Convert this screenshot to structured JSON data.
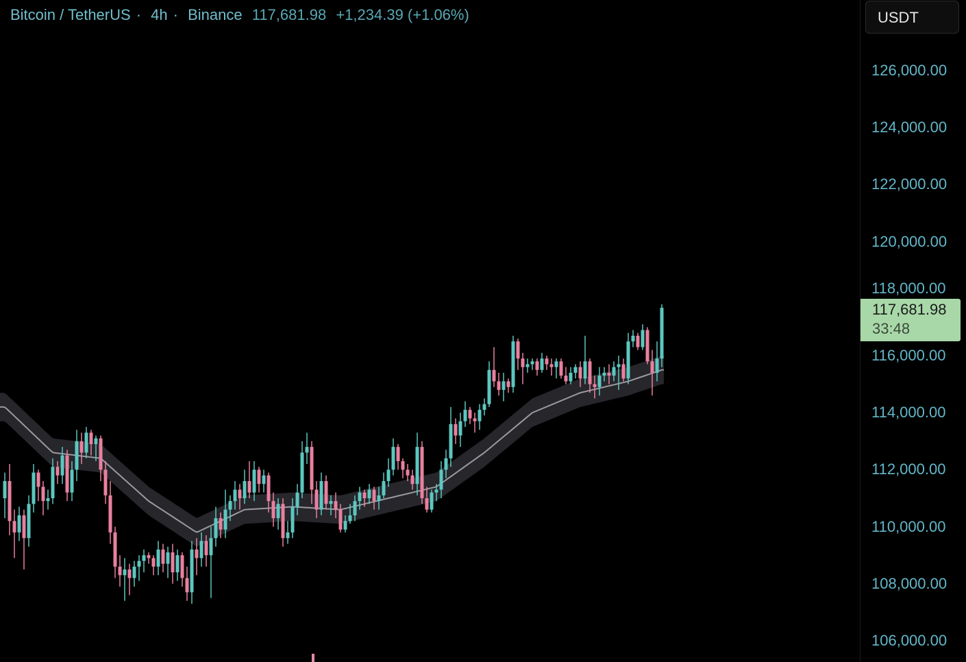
{
  "header": {
    "symbol": "Bitcoin / TetherUS",
    "interval": "4h",
    "exchange": "Binance",
    "separator": "·",
    "last_price": "117,681.98",
    "change": "+1,234.39 (+1.06%)"
  },
  "axis": {
    "currency_button": "USDT",
    "price_label": "117,681.98",
    "countdown": "33:48"
  },
  "colors": {
    "up": "#5cc7c0",
    "down": "#e8809f",
    "ma_line": "#9a9aa0",
    "ma_band": "#26262b",
    "price_tag": "#a8d8a8",
    "text": "#6fbfcc"
  },
  "chart_data": {
    "type": "candlestick",
    "title": "Bitcoin / TetherUS · 4h · Binance",
    "unit": "USDT",
    "price_scale": "thousands",
    "ylim": [
      105000,
      127500
    ],
    "yticks": [
      "106,000.00",
      "108,000.00",
      "110,000.00",
      "112,000.00",
      "114,000.00",
      "116,000.00",
      "118,000.00",
      "120,000.00",
      "122,000.00",
      "124,000.00",
      "126,000.00"
    ],
    "ytick_values": [
      106000,
      108000,
      110000,
      112000,
      114000,
      116000,
      118000,
      120000,
      122000,
      124000,
      126000
    ],
    "grid": false,
    "ohlc_k": [
      [
        111.0,
        111.9,
        110.3,
        111.6
      ],
      [
        111.6,
        112.2,
        109.7,
        110.2
      ],
      [
        110.2,
        110.6,
        108.9,
        109.8
      ],
      [
        109.8,
        110.7,
        109.5,
        110.4
      ],
      [
        110.4,
        110.6,
        108.5,
        109.6
      ],
      [
        109.6,
        111.1,
        109.3,
        110.8
      ],
      [
        110.8,
        112.2,
        110.5,
        111.9
      ],
      [
        111.9,
        112.0,
        110.9,
        111.4
      ],
      [
        111.4,
        111.6,
        110.4,
        110.9
      ],
      [
        110.9,
        111.3,
        110.6,
        111.0
      ],
      [
        111.0,
        112.4,
        110.8,
        112.1
      ],
      [
        112.1,
        112.3,
        111.5,
        111.8
      ],
      [
        111.8,
        112.8,
        111.5,
        112.5
      ],
      [
        112.5,
        112.7,
        110.9,
        111.2
      ],
      [
        111.2,
        112.3,
        110.9,
        112.0
      ],
      [
        112.0,
        113.4,
        111.6,
        113.0
      ],
      [
        113.0,
        113.3,
        112.2,
        112.6
      ],
      [
        112.6,
        113.5,
        112.4,
        113.3
      ],
      [
        113.3,
        113.4,
        112.5,
        112.9
      ],
      [
        112.9,
        113.2,
        112.3,
        113.1
      ],
      [
        113.1,
        113.2,
        111.6,
        112.0
      ],
      [
        112.0,
        112.3,
        110.8,
        111.1
      ],
      [
        111.1,
        111.6,
        109.4,
        109.8
      ],
      [
        109.8,
        110.0,
        108.2,
        108.6
      ],
      [
        108.6,
        109.0,
        107.9,
        108.3
      ],
      [
        108.3,
        108.9,
        107.4,
        108.5
      ],
      [
        108.5,
        108.7,
        107.6,
        108.2
      ],
      [
        108.2,
        108.8,
        107.9,
        108.6
      ],
      [
        108.6,
        109.0,
        108.1,
        108.8
      ],
      [
        108.8,
        109.2,
        108.4,
        109.0
      ],
      [
        109.0,
        109.1,
        108.7,
        108.9
      ],
      [
        108.9,
        109.0,
        108.3,
        108.6
      ],
      [
        108.6,
        109.5,
        108.3,
        109.2
      ],
      [
        109.2,
        109.4,
        108.4,
        108.7
      ],
      [
        108.7,
        109.3,
        108.2,
        109.1
      ],
      [
        109.1,
        109.4,
        108.0,
        108.4
      ],
      [
        108.4,
        109.2,
        108.1,
        109.0
      ],
      [
        109.0,
        109.1,
        107.9,
        108.2
      ],
      [
        108.2,
        108.6,
        107.4,
        107.7
      ],
      [
        107.7,
        109.5,
        107.3,
        109.2
      ],
      [
        109.2,
        109.6,
        108.3,
        108.9
      ],
      [
        108.9,
        109.8,
        108.6,
        109.5
      ],
      [
        109.5,
        109.7,
        108.6,
        109.0
      ],
      [
        109.0,
        110.0,
        107.5,
        109.6
      ],
      [
        109.6,
        110.7,
        109.3,
        110.3
      ],
      [
        110.3,
        110.5,
        109.6,
        109.9
      ],
      [
        109.9,
        111.3,
        109.6,
        110.6
      ],
      [
        110.6,
        111.1,
        110.2,
        110.9
      ],
      [
        110.9,
        111.6,
        110.6,
        111.3
      ],
      [
        111.3,
        111.5,
        110.6,
        111.0
      ],
      [
        111.0,
        112.0,
        110.8,
        111.6
      ],
      [
        111.6,
        112.3,
        111.0,
        111.2
      ],
      [
        111.2,
        112.3,
        110.9,
        112.0
      ],
      [
        112.0,
        112.1,
        111.2,
        111.5
      ],
      [
        111.5,
        112.0,
        111.2,
        111.8
      ],
      [
        111.8,
        111.9,
        110.5,
        110.9
      ],
      [
        110.9,
        111.2,
        110.0,
        110.3
      ],
      [
        110.3,
        111.0,
        109.9,
        110.8
      ],
      [
        110.8,
        111.0,
        109.3,
        109.6
      ],
      [
        109.6,
        110.2,
        109.4,
        109.8
      ],
      [
        109.8,
        111.0,
        109.6,
        110.7
      ],
      [
        110.7,
        111.5,
        110.4,
        111.2
      ],
      [
        111.2,
        113.0,
        111.0,
        112.6
      ],
      [
        112.6,
        113.3,
        112.2,
        112.8
      ],
      [
        112.8,
        113.0,
        110.8,
        111.3
      ],
      [
        111.3,
        111.6,
        110.3,
        110.6
      ],
      [
        110.6,
        111.9,
        110.4,
        111.6
      ],
      [
        111.6,
        111.8,
        110.6,
        110.8
      ],
      [
        110.8,
        111.1,
        110.4,
        110.9
      ],
      [
        110.9,
        111.2,
        110.3,
        110.6
      ],
      [
        110.6,
        110.8,
        109.8,
        109.9
      ],
      [
        109.9,
        110.4,
        109.8,
        110.2
      ],
      [
        110.2,
        110.8,
        110.1,
        110.4
      ],
      [
        110.4,
        111.1,
        110.2,
        110.9
      ],
      [
        110.9,
        111.4,
        110.6,
        111.2
      ],
      [
        111.2,
        111.3,
        110.7,
        111.0
      ],
      [
        111.0,
        111.5,
        110.8,
        111.3
      ],
      [
        111.3,
        111.4,
        110.6,
        110.9
      ],
      [
        110.9,
        111.4,
        110.6,
        111.1
      ],
      [
        111.1,
        111.9,
        111.0,
        111.6
      ],
      [
        111.6,
        112.4,
        111.4,
        112.0
      ],
      [
        112.0,
        113.1,
        111.8,
        112.8
      ],
      [
        112.8,
        112.9,
        112.0,
        112.3
      ],
      [
        112.3,
        112.4,
        111.7,
        112.0
      ],
      [
        112.0,
        112.2,
        111.6,
        111.8
      ],
      [
        111.8,
        112.0,
        111.3,
        111.5
      ],
      [
        111.5,
        113.3,
        111.1,
        112.8
      ],
      [
        112.8,
        113.0,
        110.8,
        111.0
      ],
      [
        111.0,
        111.4,
        110.5,
        110.6
      ],
      [
        110.6,
        111.3,
        110.5,
        111.2
      ],
      [
        111.2,
        111.5,
        110.9,
        111.3
      ],
      [
        111.3,
        112.3,
        111.0,
        112.0
      ],
      [
        112.0,
        112.7,
        111.7,
        112.4
      ],
      [
        112.4,
        114.2,
        112.1,
        113.6
      ],
      [
        113.6,
        113.8,
        112.9,
        113.2
      ],
      [
        113.2,
        114.0,
        112.8,
        113.7
      ],
      [
        113.7,
        114.4,
        113.5,
        114.1
      ],
      [
        114.1,
        114.2,
        113.6,
        113.8
      ],
      [
        113.8,
        114.0,
        113.3,
        113.7
      ],
      [
        113.7,
        114.3,
        113.4,
        114.1
      ],
      [
        114.1,
        114.5,
        113.9,
        114.3
      ],
      [
        114.3,
        115.8,
        114.2,
        115.5
      ],
      [
        115.5,
        116.3,
        114.9,
        115.1
      ],
      [
        115.1,
        115.4,
        114.6,
        114.8
      ],
      [
        114.8,
        115.4,
        114.4,
        115.1
      ],
      [
        115.1,
        115.2,
        114.7,
        114.9
      ],
      [
        114.9,
        116.7,
        114.7,
        116.5
      ],
      [
        116.5,
        116.6,
        115.5,
        115.9
      ],
      [
        115.9,
        116.1,
        115.0,
        115.6
      ],
      [
        115.6,
        115.9,
        115.4,
        115.7
      ],
      [
        115.7,
        115.9,
        115.5,
        115.8
      ],
      [
        115.8,
        115.9,
        115.3,
        115.5
      ],
      [
        115.5,
        116.1,
        115.4,
        115.9
      ],
      [
        115.9,
        116.0,
        115.5,
        115.7
      ],
      [
        115.7,
        115.9,
        115.3,
        115.6
      ],
      [
        115.6,
        115.9,
        115.2,
        115.8
      ],
      [
        115.8,
        115.9,
        115.2,
        115.3
      ],
      [
        115.3,
        115.6,
        115.0,
        115.1
      ],
      [
        115.1,
        115.6,
        115.0,
        115.4
      ],
      [
        115.4,
        115.7,
        115.2,
        115.6
      ],
      [
        115.6,
        115.8,
        114.9,
        115.2
      ],
      [
        115.2,
        116.7,
        115.0,
        115.8
      ],
      [
        115.8,
        115.9,
        114.7,
        115.0
      ],
      [
        115.0,
        115.3,
        114.5,
        114.9
      ],
      [
        114.9,
        115.6,
        114.6,
        115.3
      ],
      [
        115.3,
        115.6,
        115.1,
        115.4
      ],
      [
        115.4,
        115.7,
        115.0,
        115.3
      ],
      [
        115.3,
        115.8,
        115.1,
        115.6
      ],
      [
        115.6,
        116.0,
        114.8,
        115.7
      ],
      [
        115.7,
        115.9,
        115.1,
        115.2
      ],
      [
        115.2,
        116.8,
        115.0,
        116.5
      ],
      [
        116.5,
        116.9,
        116.3,
        116.7
      ],
      [
        116.7,
        116.8,
        116.2,
        116.3
      ],
      [
        116.3,
        117.1,
        116.2,
        116.9
      ],
      [
        116.9,
        117.0,
        115.7,
        115.8
      ],
      [
        115.8,
        116.2,
        114.6,
        115.4
      ],
      [
        115.4,
        116.5,
        115.1,
        115.9
      ],
      [
        115.9,
        117.8,
        115.6,
        117.68
      ]
    ],
    "moving_average": {
      "sample_every_n_candles": 10,
      "values_k": [
        114.2,
        112.6,
        112.4,
        110.9,
        109.8,
        110.6,
        110.7,
        110.6,
        111.0,
        111.4,
        112.6,
        114.0,
        114.7,
        115.1,
        115.5
      ],
      "band_halfwidth_k": 0.5
    }
  }
}
